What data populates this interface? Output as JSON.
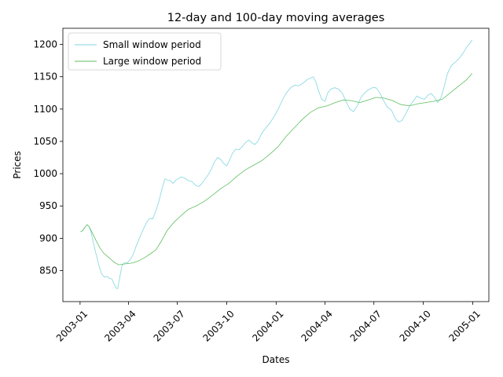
{
  "chart_data": {
    "type": "line",
    "title": "12-day and 100-day moving averages",
    "xlabel": "Dates",
    "ylabel": "Prices",
    "xlim": [
      "2002-11-30",
      "2005-01-31"
    ],
    "ylim": [
      802,
      1225
    ],
    "x_ticks": [
      "2003-01",
      "2003-04",
      "2003-07",
      "2003-10",
      "2004-01",
      "2004-04",
      "2004-07",
      "2004-10",
      "2005-01"
    ],
    "y_ticks": [
      850,
      900,
      950,
      1000,
      1050,
      1100,
      1150,
      1200
    ],
    "grid": false,
    "legend": "top-left",
    "series": [
      {
        "name": "Small window period",
        "color": "#7fd6e0",
        "points": [
          [
            "2003-01-02",
            910
          ],
          [
            "2003-01-06",
            912
          ],
          [
            "2003-01-10",
            917
          ],
          [
            "2003-01-14",
            921
          ],
          [
            "2003-01-18",
            918
          ],
          [
            "2003-01-22",
            908
          ],
          [
            "2003-01-26",
            892
          ],
          [
            "2003-01-31",
            875
          ],
          [
            "2003-02-05",
            858
          ],
          [
            "2003-02-10",
            845
          ],
          [
            "2003-02-15",
            840
          ],
          [
            "2003-02-20",
            841
          ],
          [
            "2003-02-25",
            838
          ],
          [
            "2003-03-01",
            837
          ],
          [
            "2003-03-05",
            830
          ],
          [
            "2003-03-09",
            823
          ],
          [
            "2003-03-12",
            822
          ],
          [
            "2003-03-16",
            840
          ],
          [
            "2003-03-20",
            858
          ],
          [
            "2003-03-25",
            862
          ],
          [
            "2003-03-30",
            862
          ],
          [
            "2003-04-05",
            868
          ],
          [
            "2003-04-10",
            875
          ],
          [
            "2003-04-15",
            887
          ],
          [
            "2003-04-20",
            897
          ],
          [
            "2003-04-25",
            907
          ],
          [
            "2003-05-01",
            918
          ],
          [
            "2003-05-06",
            926
          ],
          [
            "2003-05-11",
            931
          ],
          [
            "2003-05-16",
            930
          ],
          [
            "2003-05-22",
            942
          ],
          [
            "2003-05-28",
            958
          ],
          [
            "2003-06-03",
            978
          ],
          [
            "2003-06-08",
            992
          ],
          [
            "2003-06-13",
            990
          ],
          [
            "2003-06-18",
            989
          ],
          [
            "2003-06-23",
            985
          ],
          [
            "2003-06-28",
            990
          ],
          [
            "2003-07-03",
            992
          ],
          [
            "2003-07-08",
            995
          ],
          [
            "2003-07-15",
            993
          ],
          [
            "2003-07-22",
            989
          ],
          [
            "2003-07-28",
            988
          ],
          [
            "2003-08-04",
            982
          ],
          [
            "2003-08-10",
            980
          ],
          [
            "2003-08-16",
            985
          ],
          [
            "2003-08-22",
            992
          ],
          [
            "2003-08-28",
            999
          ],
          [
            "2003-09-03",
            1008
          ],
          [
            "2003-09-08",
            1018
          ],
          [
            "2003-09-14",
            1025
          ],
          [
            "2003-09-20",
            1022
          ],
          [
            "2003-09-25",
            1016
          ],
          [
            "2003-10-01",
            1012
          ],
          [
            "2003-10-06",
            1020
          ],
          [
            "2003-10-12",
            1032
          ],
          [
            "2003-10-18",
            1038
          ],
          [
            "2003-10-24",
            1037
          ],
          [
            "2003-10-30",
            1042
          ],
          [
            "2003-11-05",
            1048
          ],
          [
            "2003-11-11",
            1052
          ],
          [
            "2003-11-17",
            1048
          ],
          [
            "2003-11-22",
            1045
          ],
          [
            "2003-11-28",
            1050
          ],
          [
            "2003-12-05",
            1062
          ],
          [
            "2003-12-12",
            1070
          ],
          [
            "2003-12-20",
            1078
          ],
          [
            "2003-12-28",
            1088
          ],
          [
            "2004-01-05",
            1100
          ],
          [
            "2004-01-12",
            1113
          ],
          [
            "2004-01-20",
            1125
          ],
          [
            "2004-01-28",
            1133
          ],
          [
            "2004-02-05",
            1137
          ],
          [
            "2004-02-12",
            1136
          ],
          [
            "2004-02-20",
            1140
          ],
          [
            "2004-02-27",
            1145
          ],
          [
            "2004-03-05",
            1148
          ],
          [
            "2004-03-10",
            1150
          ],
          [
            "2004-03-15",
            1142
          ],
          [
            "2004-03-20",
            1128
          ],
          [
            "2004-03-26",
            1115
          ],
          [
            "2004-04-01",
            1112
          ],
          [
            "2004-04-06",
            1125
          ],
          [
            "2004-04-12",
            1131
          ],
          [
            "2004-04-19",
            1133
          ],
          [
            "2004-04-26",
            1131
          ],
          [
            "2004-05-03",
            1125
          ],
          [
            "2004-05-10",
            1112
          ],
          [
            "2004-05-17",
            1100
          ],
          [
            "2004-05-24",
            1096
          ],
          [
            "2004-05-31",
            1105
          ],
          [
            "2004-06-07",
            1118
          ],
          [
            "2004-06-14",
            1125
          ],
          [
            "2004-06-21",
            1130
          ],
          [
            "2004-06-28",
            1133
          ],
          [
            "2004-07-05",
            1133
          ],
          [
            "2004-07-12",
            1125
          ],
          [
            "2004-07-19",
            1113
          ],
          [
            "2004-07-26",
            1103
          ],
          [
            "2004-08-03",
            1098
          ],
          [
            "2004-08-10",
            1085
          ],
          [
            "2004-08-16",
            1080
          ],
          [
            "2004-08-22",
            1082
          ],
          [
            "2004-08-29",
            1092
          ],
          [
            "2004-09-05",
            1104
          ],
          [
            "2004-09-12",
            1112
          ],
          [
            "2004-09-19",
            1120
          ],
          [
            "2004-09-26",
            1117
          ],
          [
            "2004-10-03",
            1115
          ],
          [
            "2004-10-10",
            1122
          ],
          [
            "2004-10-16",
            1124
          ],
          [
            "2004-10-22",
            1118
          ],
          [
            "2004-10-28",
            1110
          ],
          [
            "2004-11-03",
            1118
          ],
          [
            "2004-11-09",
            1135
          ],
          [
            "2004-11-15",
            1155
          ],
          [
            "2004-11-22",
            1167
          ],
          [
            "2004-11-29",
            1172
          ],
          [
            "2004-12-06",
            1178
          ],
          [
            "2004-12-13",
            1185
          ],
          [
            "2004-12-20",
            1195
          ],
          [
            "2004-12-27",
            1202
          ],
          [
            "2004-12-31",
            1207
          ]
        ]
      },
      {
        "name": "Large window period",
        "color": "#5fbf5f",
        "points": [
          [
            "2003-01-02",
            910
          ],
          [
            "2003-01-06",
            912
          ],
          [
            "2003-01-10",
            917
          ],
          [
            "2003-01-14",
            921
          ],
          [
            "2003-01-18",
            918
          ],
          [
            "2003-01-24",
            908
          ],
          [
            "2003-01-31",
            896
          ],
          [
            "2003-02-07",
            885
          ],
          [
            "2003-02-14",
            877
          ],
          [
            "2003-02-21",
            872
          ],
          [
            "2003-02-28",
            867
          ],
          [
            "2003-03-07",
            862
          ],
          [
            "2003-03-14",
            859
          ],
          [
            "2003-03-22",
            860
          ],
          [
            "2003-04-01",
            861
          ],
          [
            "2003-04-10",
            862
          ],
          [
            "2003-04-20",
            865
          ],
          [
            "2003-05-01",
            870
          ],
          [
            "2003-05-12",
            876
          ],
          [
            "2003-05-22",
            882
          ],
          [
            "2003-06-01",
            895
          ],
          [
            "2003-06-12",
            912
          ],
          [
            "2003-06-25",
            925
          ],
          [
            "2003-07-08",
            935
          ],
          [
            "2003-07-22",
            945
          ],
          [
            "2003-08-05",
            950
          ],
          [
            "2003-08-20",
            957
          ],
          [
            "2003-09-05",
            967
          ],
          [
            "2003-09-20",
            977
          ],
          [
            "2003-10-05",
            985
          ],
          [
            "2003-10-20",
            996
          ],
          [
            "2003-11-05",
            1006
          ],
          [
            "2003-11-20",
            1013
          ],
          [
            "2003-12-05",
            1020
          ],
          [
            "2003-12-20",
            1030
          ],
          [
            "2004-01-05",
            1042
          ],
          [
            "2004-01-20",
            1058
          ],
          [
            "2004-02-05",
            1072
          ],
          [
            "2004-02-20",
            1085
          ],
          [
            "2004-03-05",
            1095
          ],
          [
            "2004-03-20",
            1102
          ],
          [
            "2004-04-05",
            1105
          ],
          [
            "2004-04-20",
            1110
          ],
          [
            "2004-05-05",
            1114
          ],
          [
            "2004-05-20",
            1113
          ],
          [
            "2004-06-05",
            1110
          ],
          [
            "2004-06-20",
            1114
          ],
          [
            "2004-07-05",
            1118
          ],
          [
            "2004-07-20",
            1117
          ],
          [
            "2004-08-05",
            1113
          ],
          [
            "2004-08-20",
            1107
          ],
          [
            "2004-09-05",
            1105
          ],
          [
            "2004-09-20",
            1108
          ],
          [
            "2004-10-05",
            1110
          ],
          [
            "2004-10-20",
            1112
          ],
          [
            "2004-11-05",
            1115
          ],
          [
            "2004-11-20",
            1125
          ],
          [
            "2004-12-05",
            1135
          ],
          [
            "2004-12-20",
            1145
          ],
          [
            "2004-12-31",
            1155
          ]
        ]
      }
    ]
  }
}
